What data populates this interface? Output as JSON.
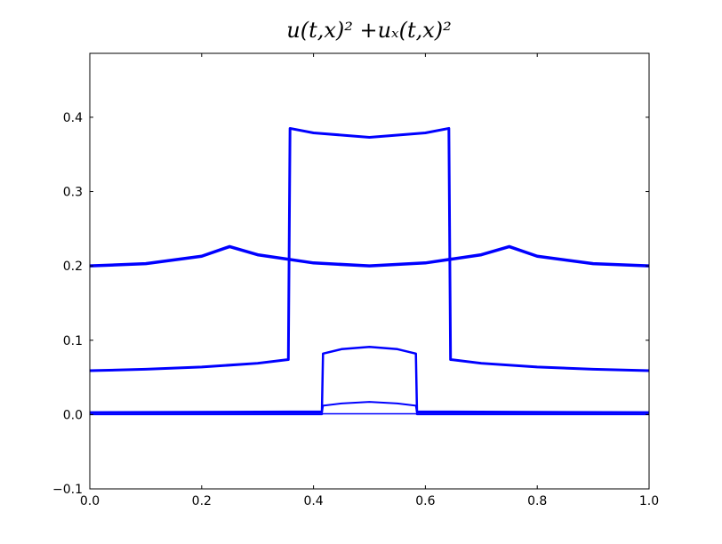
{
  "chart_data": {
    "type": "line",
    "title": "u(t,x)² +uₓ(t,x)²",
    "xlim": [
      0,
      1
    ],
    "ylim": [
      -0.1,
      0.486
    ],
    "xticks": [
      {
        "value": 0,
        "label": "0.0"
      },
      0.2,
      0.4,
      0.6,
      0.8,
      {
        "value": 1,
        "label": "1.0"
      }
    ],
    "yticks": [
      {
        "value": -0.1,
        "label": "−0.1"
      },
      {
        "value": 0,
        "label": "0.0"
      },
      0.1,
      0.2,
      0.3,
      0.4
    ],
    "grid": false,
    "series": [
      {
        "color": "#0000ff",
        "linewidth": 1.5,
        "x": [
          0,
          0.415,
          0.417,
          0.45,
          0.5,
          0.55,
          0.583,
          0.585,
          1
        ],
        "values": [
          0,
          0,
          0.001,
          0.001,
          0.001,
          0.001,
          0.001,
          0,
          0
        ]
      },
      {
        "color": "#0000ff",
        "linewidth": 2,
        "x": [
          0,
          0.415,
          0.417,
          0.45,
          0.5,
          0.55,
          0.583,
          0.585,
          1
        ],
        "values": [
          0.002,
          0.002,
          0.012,
          0.015,
          0.017,
          0.015,
          0.012,
          0.002,
          0.002
        ]
      },
      {
        "color": "#0000ff",
        "linewidth": 2.5,
        "x": [
          0,
          0.415,
          0.417,
          0.45,
          0.5,
          0.55,
          0.583,
          0.585,
          1
        ],
        "values": [
          0.003,
          0.004,
          0.082,
          0.088,
          0.091,
          0.088,
          0.082,
          0.004,
          0.003
        ]
      },
      {
        "color": "#0000ff",
        "linewidth": 3,
        "x": [
          0,
          0.1,
          0.2,
          0.3,
          0.355,
          0.358,
          0.4,
          0.5,
          0.6,
          0.642,
          0.645,
          0.7,
          0.8,
          0.9,
          1
        ],
        "values": [
          0.059,
          0.061,
          0.064,
          0.069,
          0.074,
          0.385,
          0.379,
          0.373,
          0.379,
          0.385,
          0.074,
          0.069,
          0.064,
          0.061,
          0.059
        ]
      },
      {
        "color": "#0000ff",
        "linewidth": 3.5,
        "x": [
          0,
          0.1,
          0.2,
          0.25,
          0.3,
          0.4,
          0.5,
          0.6,
          0.7,
          0.75,
          0.8,
          0.9,
          1
        ],
        "values": [
          0.2,
          0.203,
          0.213,
          0.226,
          0.215,
          0.204,
          0.2,
          0.204,
          0.215,
          0.226,
          0.213,
          0.203,
          0.2
        ]
      }
    ]
  }
}
